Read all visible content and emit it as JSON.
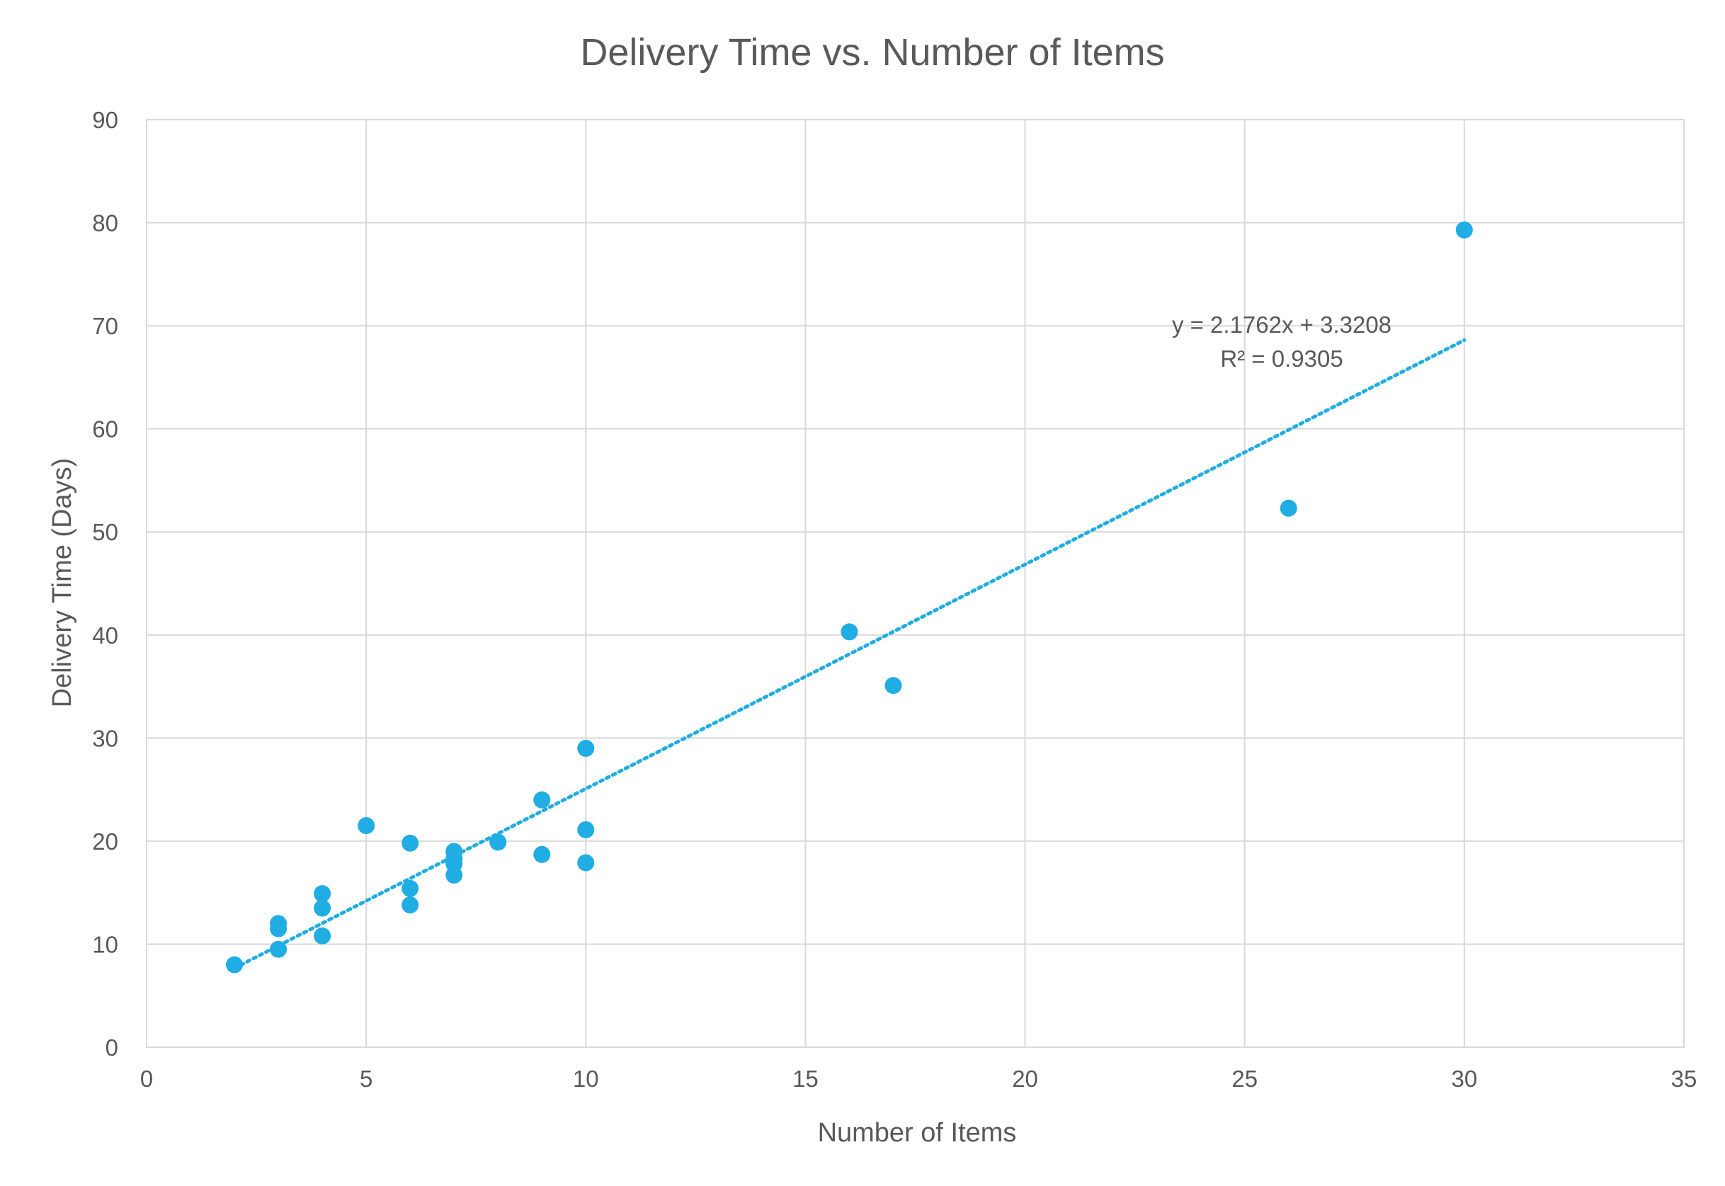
{
  "chart_data": {
    "type": "scatter",
    "title": "Delivery Time vs. Number of Items",
    "xlabel": "Number of Items",
    "ylabel": "Delivery Time (Days)",
    "xlim": [
      0,
      35
    ],
    "ylim": [
      0,
      90
    ],
    "x_ticks": [
      0,
      5,
      10,
      15,
      20,
      25,
      30,
      35
    ],
    "y_ticks": [
      0,
      10,
      20,
      30,
      40,
      50,
      60,
      70,
      80,
      90
    ],
    "grid": true,
    "legend": "none",
    "marker_color": "#1fade4",
    "trendline_color": "#1fade4",
    "series": [
      {
        "points": [
          {
            "x": 2,
            "y": 8.0
          },
          {
            "x": 3,
            "y": 9.5
          },
          {
            "x": 3,
            "y": 11.5
          },
          {
            "x": 3,
            "y": 12.0
          },
          {
            "x": 4,
            "y": 10.8
          },
          {
            "x": 4,
            "y": 13.5
          },
          {
            "x": 4,
            "y": 14.9
          },
          {
            "x": 5,
            "y": 21.5
          },
          {
            "x": 6,
            "y": 13.8
          },
          {
            "x": 6,
            "y": 15.4
          },
          {
            "x": 6,
            "y": 19.8
          },
          {
            "x": 7,
            "y": 16.7
          },
          {
            "x": 7,
            "y": 17.8
          },
          {
            "x": 7,
            "y": 18.3
          },
          {
            "x": 7,
            "y": 19.0
          },
          {
            "x": 8,
            "y": 19.9
          },
          {
            "x": 9,
            "y": 18.7
          },
          {
            "x": 9,
            "y": 24.0
          },
          {
            "x": 10,
            "y": 17.9
          },
          {
            "x": 10,
            "y": 21.1
          },
          {
            "x": 10,
            "y": 29.0
          },
          {
            "x": 16,
            "y": 40.3
          },
          {
            "x": 17,
            "y": 35.1
          },
          {
            "x": 26,
            "y": 52.3
          },
          {
            "x": 30,
            "y": 79.3
          }
        ]
      }
    ],
    "trendline": {
      "type": "linear",
      "slope": 2.1762,
      "intercept": 3.3208,
      "x_range": [
        2,
        30
      ],
      "equation": "y = 2.1762x + 3.3208",
      "r_squared": "R² = 0.9305"
    }
  }
}
